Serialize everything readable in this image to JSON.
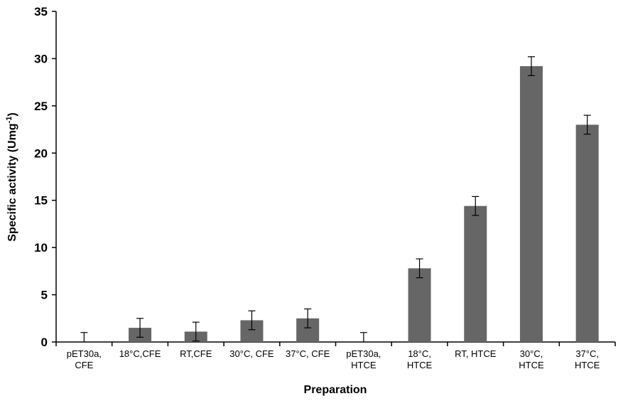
{
  "chart_data": {
    "type": "bar",
    "xlabel": "Preparation",
    "ylabel": "Specific activity (Umg",
    "ylabel_superscript": "-1",
    "ylabel_close": ")",
    "ylim": [
      0,
      35
    ],
    "yticks": [
      0,
      5,
      10,
      15,
      20,
      25,
      30,
      35
    ],
    "grid": false,
    "legend": "none",
    "categories": [
      [
        "pET30a,",
        "CFE"
      ],
      [
        "18°C,CFE"
      ],
      [
        "RT,CFE"
      ],
      [
        "30°C, CFE"
      ],
      [
        "37°C, CFE"
      ],
      [
        "pET30a,",
        "HTCE"
      ],
      [
        "18°C,",
        "HTCE"
      ],
      [
        "RT, HTCE"
      ],
      [
        "30°C,",
        "HTCE"
      ],
      [
        "37°C,",
        "HTCE"
      ]
    ],
    "values": [
      0,
      1.5,
      1.1,
      2.3,
      2.5,
      0,
      7.8,
      14.4,
      29.2,
      23.0
    ],
    "errors": [
      1.0,
      1.0,
      1.0,
      1.0,
      1.0,
      1.0,
      1.0,
      1.0,
      1.0,
      1.0
    ],
    "bar_color": "#666666"
  }
}
